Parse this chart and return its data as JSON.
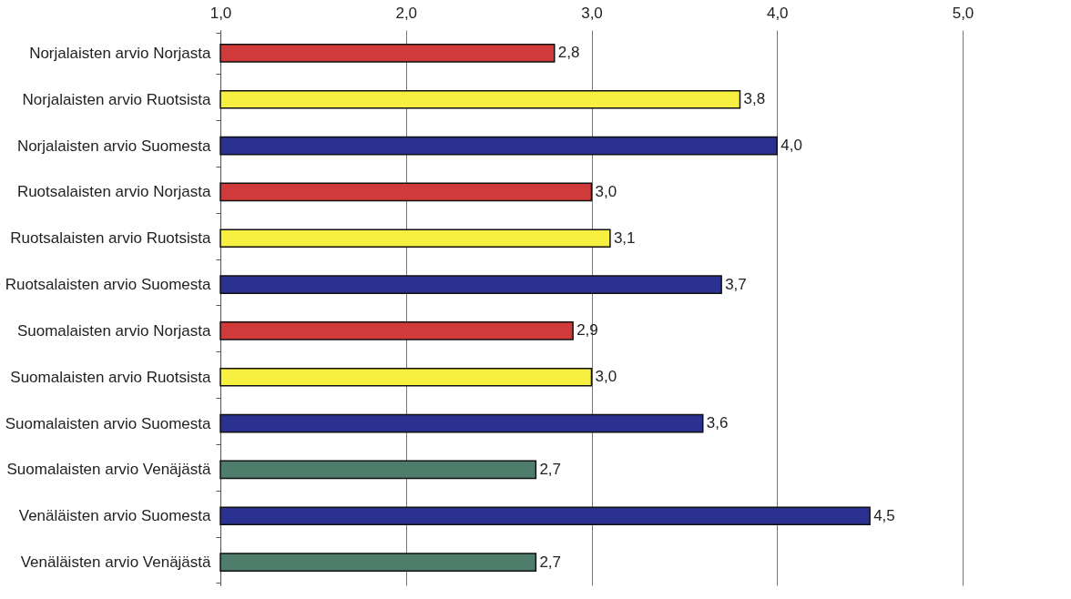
{
  "chart_data": {
    "type": "bar",
    "orientation": "horizontal",
    "categories": [
      "Norjalaisten arvio Norjasta",
      "Norjalaisten arvio Ruotsista",
      "Norjalaisten arvio Suomesta",
      "Ruotsalaisten arvio Norjasta",
      "Ruotsalaisten arvio Ruotsista",
      "Ruotsalaisten arvio Suomesta",
      "Suomalaisten arvio Norjasta",
      "Suomalaisten arvio Ruotsista",
      "Suomalaisten arvio Suomesta",
      "Suomalaisten arvio Venäjästä",
      "Venäläisten arvio Suomesta",
      "Venäläisten arvio Venäjästä"
    ],
    "values": [
      2.8,
      3.8,
      4.0,
      3.0,
      3.1,
      3.7,
      2.9,
      3.0,
      3.6,
      2.7,
      4.5,
      2.7
    ],
    "value_labels": [
      "2,8",
      "3,8",
      "4,0",
      "3,0",
      "3,1",
      "3,7",
      "2,9",
      "3,0",
      "3,6",
      "2,7",
      "4,5",
      "2,7"
    ],
    "colors": [
      "#d03a3a",
      "#f8f040",
      "#2b3190",
      "#d03a3a",
      "#f8f040",
      "#2b3190",
      "#d03a3a",
      "#f8f040",
      "#2b3190",
      "#4f7d6c",
      "#2b3190",
      "#4f7d6c"
    ],
    "xlim": [
      1,
      5
    ],
    "xticks": [
      {
        "value": 1,
        "label": "1,0"
      },
      {
        "value": 2,
        "label": "2,0"
      },
      {
        "value": 3,
        "label": "3,0"
      },
      {
        "value": 4,
        "label": "4,0"
      },
      {
        "value": 5,
        "label": "5,0"
      }
    ],
    "grid": "x",
    "legend": false
  }
}
